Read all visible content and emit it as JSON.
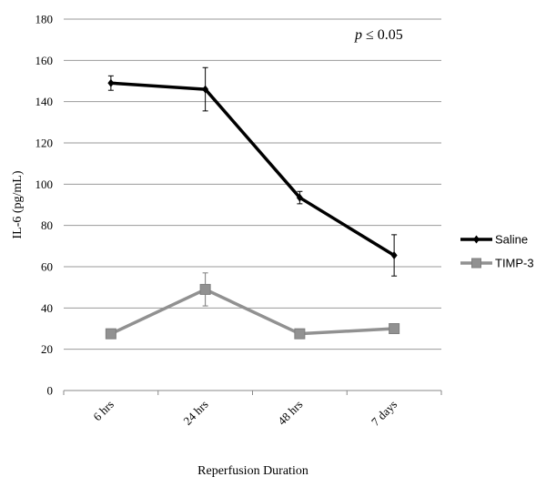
{
  "chart_data": {
    "type": "line",
    "categories": [
      "6 hrs",
      "24 hrs",
      "48 hrs",
      "7 days"
    ],
    "series": [
      {
        "name": "Saline",
        "values": [
          149,
          146,
          93.5,
          65.5
        ],
        "errors": [
          3.5,
          10.5,
          3,
          10
        ],
        "color": "#000000",
        "marker": "diamond"
      },
      {
        "name": "TIMP-3",
        "values": [
          27.5,
          49,
          27.5,
          30
        ],
        "errors": [
          2,
          8,
          1.5,
          1.5
        ],
        "color": "#919191",
        "marker": "square"
      }
    ],
    "xlabel": "Reperfusion Duration",
    "ylabel": "IL-6 (pg/mL)",
    "ylim": [
      0,
      180
    ],
    "yticks": [
      "0",
      "20",
      "40",
      "60",
      "80",
      "100",
      "120",
      "140",
      "160",
      "180"
    ],
    "grid": true,
    "legend_position": "right",
    "annotation": {
      "italic": "p",
      "rest": " ≤ 0.05"
    }
  }
}
